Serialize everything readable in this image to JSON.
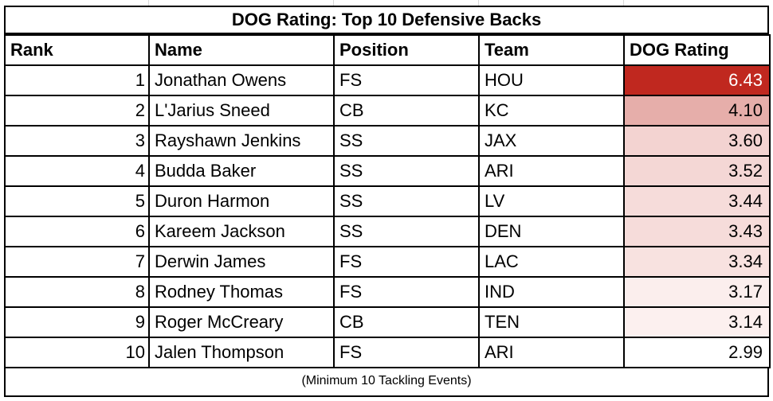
{
  "title": "DOG Rating: Top 10 Defensive Backs",
  "headers": [
    "Rank",
    "Name",
    "Position",
    "Team",
    "DOG Rating"
  ],
  "rows": [
    {
      "rank": "1",
      "name": "Jonathan Owens",
      "position": "FS",
      "team": "HOU",
      "rating": "6.43",
      "bg": "#c0281f",
      "fg": "#ffffff"
    },
    {
      "rank": "2",
      "name": "L'Jarius Sneed",
      "position": "CB",
      "team": "KC",
      "rating": "4.10",
      "bg": "#e6aeaa",
      "fg": "#000000"
    },
    {
      "rank": "3",
      "name": "Rayshawn Jenkins",
      "position": "SS",
      "team": "JAX",
      "rating": "3.60",
      "bg": "#f3d3d1",
      "fg": "#000000"
    },
    {
      "rank": "4",
      "name": "Budda Baker",
      "position": "SS",
      "team": "ARI",
      "rating": "3.52",
      "bg": "#f4d7d5",
      "fg": "#000000"
    },
    {
      "rank": "5",
      "name": "Duron Harmon",
      "position": "SS",
      "team": "LV",
      "rating": "3.44",
      "bg": "#f6dcda",
      "fg": "#000000"
    },
    {
      "rank": "6",
      "name": "Kareem Jackson",
      "position": "SS",
      "team": "DEN",
      "rating": "3.43",
      "bg": "#f6dcda",
      "fg": "#000000"
    },
    {
      "rank": "7",
      "name": "Derwin James",
      "position": "FS",
      "team": "LAC",
      "rating": "3.34",
      "bg": "#f8e2e0",
      "fg": "#000000"
    },
    {
      "rank": "8",
      "name": "Rodney Thomas",
      "position": "FS",
      "team": "IND",
      "rating": "3.17",
      "bg": "#fbeeed",
      "fg": "#000000"
    },
    {
      "rank": "9",
      "name": "Roger McCreary",
      "position": "CB",
      "team": "TEN",
      "rating": "3.14",
      "bg": "#fcf0ef",
      "fg": "#000000"
    },
    {
      "rank": "10",
      "name": "Jalen Thompson",
      "position": "FS",
      "team": "ARI",
      "rating": "2.99",
      "bg": "#ffffff",
      "fg": "#000000"
    }
  ],
  "footer": "(Minimum 10 Tackling Events)"
}
